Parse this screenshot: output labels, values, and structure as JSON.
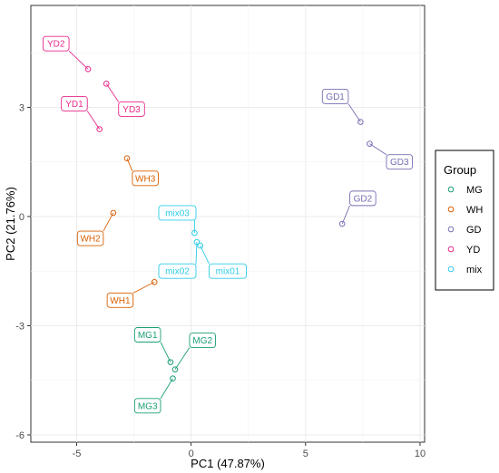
{
  "chart_data": {
    "type": "scatter",
    "title": "",
    "xlabel": "PC1 (47.87%)",
    "ylabel": "PC2 (21.76%)",
    "xlim": [
      -7,
      10.2
    ],
    "ylim": [
      -6.2,
      5.8
    ],
    "xticks": [
      -5,
      0,
      5,
      10
    ],
    "yticks": [
      -6,
      -3,
      0,
      3
    ],
    "grid": true,
    "legend": {
      "title": "Group",
      "position": "right"
    },
    "series": [
      {
        "name": "MG",
        "color": "#1B9E77",
        "points": [
          {
            "label": "MG1",
            "x": -0.9,
            "y": -4.0
          },
          {
            "label": "MG2",
            "x": -0.7,
            "y": -4.2
          },
          {
            "label": "MG3",
            "x": -0.8,
            "y": -4.45
          }
        ]
      },
      {
        "name": "WH",
        "color": "#D95F02",
        "points": [
          {
            "label": "WH1",
            "x": -1.6,
            "y": -1.8
          },
          {
            "label": "WH2",
            "x": -3.4,
            "y": 0.1
          },
          {
            "label": "WH3",
            "x": -2.8,
            "y": 1.6
          }
        ]
      },
      {
        "name": "GD",
        "color": "#7570B3",
        "points": [
          {
            "label": "GD1",
            "x": 7.4,
            "y": 2.6
          },
          {
            "label": "GD2",
            "x": 6.6,
            "y": -0.2
          },
          {
            "label": "GD3",
            "x": 7.8,
            "y": 2.0
          }
        ]
      },
      {
        "name": "YD",
        "color": "#E7298A",
        "points": [
          {
            "label": "YD1",
            "x": -4.0,
            "y": 2.4
          },
          {
            "label": "YD2",
            "x": -4.5,
            "y": 4.05
          },
          {
            "label": "YD3",
            "x": -3.7,
            "y": 3.65
          }
        ]
      },
      {
        "name": "mix",
        "color": "#2DCCE8",
        "points": [
          {
            "label": "mix01",
            "x": 0.4,
            "y": -0.8
          },
          {
            "label": "mix02",
            "x": 0.25,
            "y": -0.7
          },
          {
            "label": "mix03",
            "x": 0.15,
            "y": -0.45
          }
        ]
      }
    ],
    "labels": [
      {
        "text": "MG1",
        "series": "MG",
        "point": 0,
        "lx": -1.9,
        "ly": -3.25
      },
      {
        "text": "MG2",
        "series": "MG",
        "point": 1,
        "lx": 0.5,
        "ly": -3.4
      },
      {
        "text": "MG3",
        "series": "MG",
        "point": 2,
        "lx": -1.9,
        "ly": -5.2
      },
      {
        "text": "WH1",
        "series": "WH",
        "point": 0,
        "lx": -3.1,
        "ly": -2.3
      },
      {
        "text": "WH2",
        "series": "WH",
        "point": 1,
        "lx": -4.4,
        "ly": -0.6
      },
      {
        "text": "WH3",
        "series": "WH",
        "point": 2,
        "lx": -2.0,
        "ly": 1.05
      },
      {
        "text": "GD1",
        "series": "GD",
        "point": 0,
        "lx": 6.3,
        "ly": 3.3
      },
      {
        "text": "GD2",
        "series": "GD",
        "point": 1,
        "lx": 7.5,
        "ly": 0.5
      },
      {
        "text": "GD3",
        "series": "GD",
        "point": 2,
        "lx": 9.1,
        "ly": 1.5
      },
      {
        "text": "YD1",
        "series": "YD",
        "point": 0,
        "lx": -5.1,
        "ly": 3.1
      },
      {
        "text": "YD2",
        "series": "YD",
        "point": 1,
        "lx": -5.9,
        "ly": 4.75
      },
      {
        "text": "YD3",
        "series": "YD",
        "point": 2,
        "lx": -2.6,
        "ly": 2.95
      },
      {
        "text": "mix01",
        "series": "mix",
        "point": 0,
        "lx": 1.6,
        "ly": -1.5
      },
      {
        "text": "mix02",
        "series": "mix",
        "point": 1,
        "lx": -0.6,
        "ly": -1.5
      },
      {
        "text": "mix03",
        "series": "mix",
        "point": 2,
        "lx": -0.6,
        "ly": 0.1
      }
    ]
  }
}
